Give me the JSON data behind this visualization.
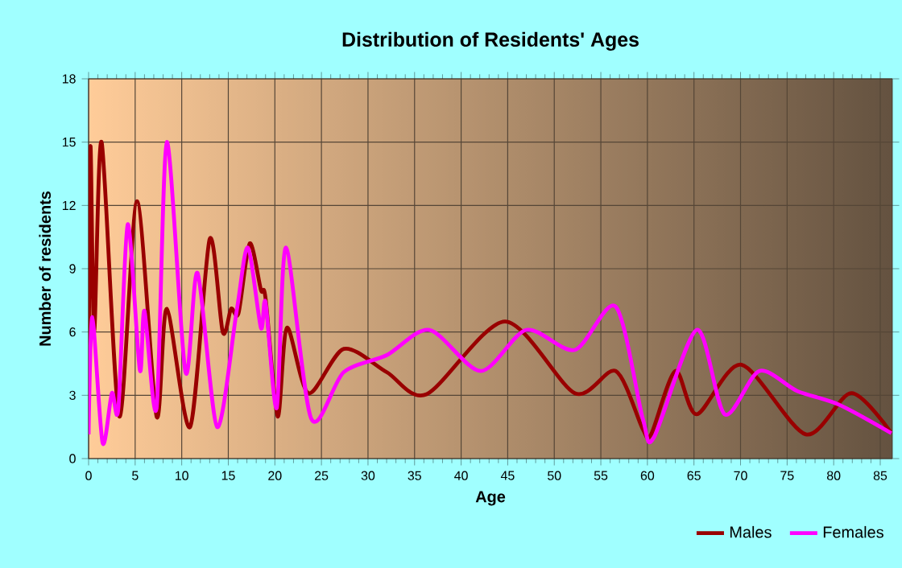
{
  "chart_data": {
    "type": "line",
    "title": "Distribution of Residents' Ages",
    "xlabel": "Age",
    "ylabel": "Number of residents",
    "xlim": [
      0,
      86.3
    ],
    "ylim": [
      0,
      18
    ],
    "xticks": [
      0,
      5,
      10,
      15,
      20,
      25,
      30,
      35,
      40,
      45,
      50,
      55,
      60,
      65,
      70,
      75,
      80,
      85
    ],
    "yticks": [
      0,
      3,
      6,
      9,
      12,
      15,
      18
    ],
    "grid": true,
    "legend": "bottom right",
    "series": [
      {
        "name": "Males",
        "color": "#990000",
        "x": [
          0,
          0.2,
          0.6,
          1.4,
          3.3,
          5.2,
          7.3,
          8.4,
          10.9,
          13.0,
          14.4,
          15.3,
          16.1,
          17.3,
          18.5,
          19.0,
          20.3,
          21.3,
          23.6,
          27.4,
          32.0,
          36.3,
          44.7,
          52.2,
          56.6,
          59.5,
          60.4,
          63.0,
          65.3,
          70.1,
          77.0,
          81.9,
          86.2
        ],
        "values": [
          3.0,
          14.8,
          6.0,
          15.0,
          2.0,
          12.2,
          2.0,
          7.1,
          1.5,
          10.4,
          6.0,
          7.1,
          6.9,
          10.2,
          8.0,
          7.6,
          2.0,
          6.2,
          3.1,
          5.2,
          4.1,
          3.05,
          6.5,
          3.1,
          4.15,
          1.4,
          1.15,
          4.15,
          2.1,
          4.45,
          1.15,
          3.1,
          1.2
        ]
      },
      {
        "name": "Females",
        "color": "#ff00ff",
        "x": [
          0,
          0.4,
          1.5,
          2.5,
          3.2,
          4.2,
          5.5,
          6.0,
          7.3,
          8.4,
          10.4,
          11.7,
          13.8,
          15.9,
          17.1,
          18.5,
          19.0,
          20.2,
          21.2,
          23.9,
          27.4,
          32.0,
          36.6,
          42.1,
          47.0,
          52.2,
          56.6,
          59.5,
          60.7,
          65.3,
          68.3,
          72.0,
          76.1,
          80.6,
          86.2
        ],
        "values": [
          1.15,
          6.7,
          0.75,
          3.1,
          2.4,
          11.1,
          4.2,
          7.0,
          2.4,
          15.0,
          4.1,
          8.8,
          1.5,
          7.0,
          10.0,
          6.2,
          7.4,
          2.4,
          10.0,
          1.9,
          4.1,
          4.9,
          6.1,
          4.15,
          6.1,
          5.15,
          7.2,
          1.9,
          1.0,
          6.1,
          2.1,
          4.15,
          3.2,
          2.55,
          1.2
        ]
      }
    ]
  }
}
